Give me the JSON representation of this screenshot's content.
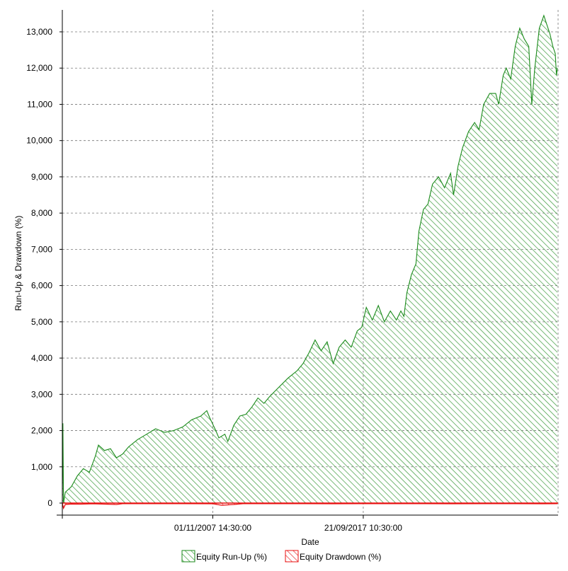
{
  "chart_data": {
    "type": "area",
    "title": "",
    "xlabel": "Date",
    "ylabel": "Run-Up & Drawdown (%)",
    "x_tick_labels": [
      "01/11/2007 14:30:00",
      "21/09/2017 10:30:00"
    ],
    "y_ticks": [
      0,
      1000,
      2000,
      3000,
      4000,
      5000,
      6000,
      7000,
      8000,
      9000,
      10000,
      11000,
      12000,
      13000
    ],
    "y_tick_labels": [
      "0",
      "1,000",
      "2,000",
      "3,000",
      "4,000",
      "5,000",
      "6,000",
      "7,000",
      "8,000",
      "9,000",
      "10,000",
      "11,000",
      "12,000",
      "13,000"
    ],
    "ylim": [
      -200,
      13500
    ],
    "grid": true,
    "legend_position": "bottom",
    "series": [
      {
        "name": "Equity Run-Up (%)",
        "color": "#1a8a1a",
        "fill": "hatch-green",
        "points": [
          [
            0.0,
            0
          ],
          [
            0.2,
            2200
          ],
          [
            0.4,
            0
          ],
          [
            1.0,
            300
          ],
          [
            3.0,
            450
          ],
          [
            5.0,
            750
          ],
          [
            7.0,
            950
          ],
          [
            9.0,
            850
          ],
          [
            11.0,
            1300
          ],
          [
            12.0,
            1600
          ],
          [
            14.0,
            1450
          ],
          [
            16.0,
            1500
          ],
          [
            18.0,
            1250
          ],
          [
            20.0,
            1350
          ],
          [
            22.0,
            1550
          ],
          [
            25.0,
            1750
          ],
          [
            28.0,
            1900
          ],
          [
            31.0,
            2050
          ],
          [
            34.0,
            1950
          ],
          [
            37.0,
            2000
          ],
          [
            40.0,
            2100
          ],
          [
            43.0,
            2300
          ],
          [
            46.0,
            2400
          ],
          [
            48.0,
            2550
          ],
          [
            49.0,
            2350
          ],
          [
            51.0,
            2000
          ],
          [
            52.0,
            1800
          ],
          [
            54.0,
            1900
          ],
          [
            55.0,
            1700
          ],
          [
            57.0,
            2150
          ],
          [
            59.0,
            2400
          ],
          [
            61.0,
            2450
          ],
          [
            63.0,
            2650
          ],
          [
            65.0,
            2900
          ],
          [
            67.0,
            2750
          ],
          [
            69.0,
            2950
          ],
          [
            72.0,
            3200
          ],
          [
            75.0,
            3450
          ],
          [
            78.0,
            3650
          ],
          [
            80.0,
            3850
          ],
          [
            82.0,
            4150
          ],
          [
            84.0,
            4500
          ],
          [
            86.0,
            4200
          ],
          [
            88.0,
            4450
          ],
          [
            90.0,
            3850
          ],
          [
            92.0,
            4300
          ],
          [
            94.0,
            4500
          ],
          [
            96.0,
            4300
          ],
          [
            98.0,
            4750
          ],
          [
            99.5,
            4850
          ],
          [
            101.0,
            5400
          ],
          [
            103.0,
            5050
          ],
          [
            105.0,
            5450
          ],
          [
            107.0,
            5000
          ],
          [
            109.0,
            5300
          ],
          [
            111.0,
            5050
          ],
          [
            112.5,
            5300
          ],
          [
            113.5,
            5150
          ],
          [
            114.5,
            5800
          ],
          [
            116.0,
            6300
          ],
          [
            117.5,
            6600
          ],
          [
            118.5,
            7500
          ],
          [
            120.0,
            8100
          ],
          [
            121.5,
            8250
          ],
          [
            123.0,
            8800
          ],
          [
            125.0,
            9000
          ],
          [
            127.0,
            8700
          ],
          [
            129.0,
            9100
          ],
          [
            130.0,
            8500
          ],
          [
            131.5,
            9300
          ],
          [
            133.0,
            9800
          ],
          [
            135.0,
            10250
          ],
          [
            137.0,
            10500
          ],
          [
            138.5,
            10300
          ],
          [
            140.0,
            11000
          ],
          [
            142.0,
            11300
          ],
          [
            144.0,
            11300
          ],
          [
            145.0,
            11000
          ],
          [
            146.5,
            11800
          ],
          [
            147.5,
            12000
          ],
          [
            149.0,
            11700
          ],
          [
            150.5,
            12600
          ],
          [
            152.0,
            13100
          ],
          [
            153.5,
            12800
          ],
          [
            155.0,
            12600
          ],
          [
            156.0,
            11000
          ],
          [
            157.0,
            12000
          ],
          [
            158.5,
            13100
          ],
          [
            160.0,
            13450
          ],
          [
            161.0,
            13200
          ],
          [
            162.0,
            12950
          ],
          [
            163.0,
            12600
          ],
          [
            163.8,
            12400
          ],
          [
            164.2,
            11800
          ],
          [
            164.5,
            12000
          ]
        ]
      },
      {
        "name": "Equity Drawdown (%)",
        "color": "#e81010",
        "fill": "hatch-red",
        "points": [
          [
            0.0,
            0
          ],
          [
            0.4,
            -140
          ],
          [
            1.0,
            -40
          ],
          [
            3.0,
            -25
          ],
          [
            6.0,
            -30
          ],
          [
            10.0,
            -20
          ],
          [
            14.0,
            -30
          ],
          [
            18.0,
            -40
          ],
          [
            20.0,
            -15
          ],
          [
            30.0,
            -15
          ],
          [
            40.0,
            -15
          ],
          [
            50.0,
            -20
          ],
          [
            53.0,
            -60
          ],
          [
            57.0,
            -40
          ],
          [
            60.0,
            -15
          ],
          [
            70.0,
            -15
          ],
          [
            80.0,
            -15
          ],
          [
            90.0,
            -20
          ],
          [
            100.0,
            -15
          ],
          [
            110.0,
            -15
          ],
          [
            120.0,
            -15
          ],
          [
            130.0,
            -20
          ],
          [
            140.0,
            -15
          ],
          [
            150.0,
            -15
          ],
          [
            160.0,
            -20
          ],
          [
            164.5,
            -15
          ]
        ]
      }
    ],
    "x_tick_positions": [
      50,
      100
    ],
    "xlim": [
      0,
      164.5
    ]
  }
}
